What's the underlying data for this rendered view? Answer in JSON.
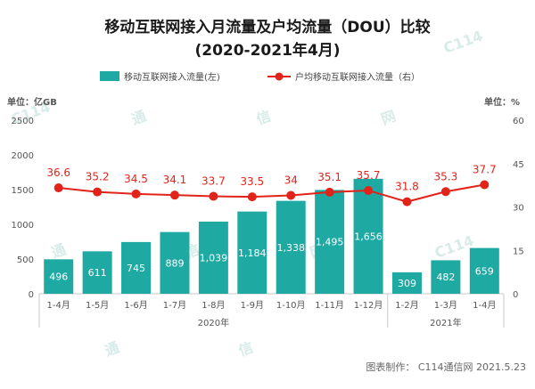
{
  "chart_data": {
    "type": "bar+line",
    "title_line1": "移动互联网接入月流量及户均流量（DOU）比较",
    "title_line2": "(2020-2021年4月)",
    "left_unit": "单位：亿GB",
    "right_unit": "单位：%",
    "categories": [
      "1-4月",
      "1-5月",
      "1-6月",
      "1-7月",
      "1-8月",
      "1-9月",
      "1-10月",
      "1-11月",
      "1-12月",
      "1-2月",
      "1-3月",
      "1-4月"
    ],
    "year_labels": [
      {
        "text": "2020年",
        "category_start": 0,
        "category_end": 8
      },
      {
        "text": "2021年",
        "category_start": 9,
        "category_end": 11
      }
    ],
    "bar_series": {
      "name": "移动互联网接入流量(左)",
      "values": [
        496,
        611,
        745,
        889,
        1039,
        1184,
        1338,
        1495,
        1656,
        309,
        482,
        659
      ],
      "labels": [
        "496",
        "611",
        "745",
        "889",
        "1,039",
        "1,184",
        "1,338",
        "1,495",
        "1,656",
        "309",
        "482",
        "659"
      ]
    },
    "line_series": {
      "name": "户均移动互联网接入流量（右）",
      "values": [
        36.6,
        35.2,
        34.5,
        34.1,
        33.7,
        33.5,
        34,
        35.1,
        35.7,
        31.8,
        35.3,
        37.7
      ],
      "labels": [
        "36.6",
        "35.2",
        "34.5",
        "34.1",
        "33.7",
        "33.5",
        "34",
        "35.1",
        "35.7",
        "31.8",
        "35.3",
        "37.7"
      ]
    },
    "y_left": {
      "min": 0,
      "max": 2500,
      "ticks": [
        0,
        500,
        1000,
        1500,
        2000,
        2500
      ]
    },
    "y_right": {
      "min": 0,
      "max": 60,
      "ticks": [
        0,
        15,
        30,
        45,
        60
      ]
    },
    "legend_position": "top",
    "grid": false,
    "colors": {
      "bar": "#1fa9a3",
      "line": "#e2231a",
      "bar_label": "#ffffff",
      "line_label": "#e2231a",
      "axis_text": "#555555"
    }
  },
  "footer": {
    "credit": "图表制作： C114通信网 2021.5.23"
  },
  "watermarks": [
    "C114",
    "通",
    "信",
    "网"
  ]
}
